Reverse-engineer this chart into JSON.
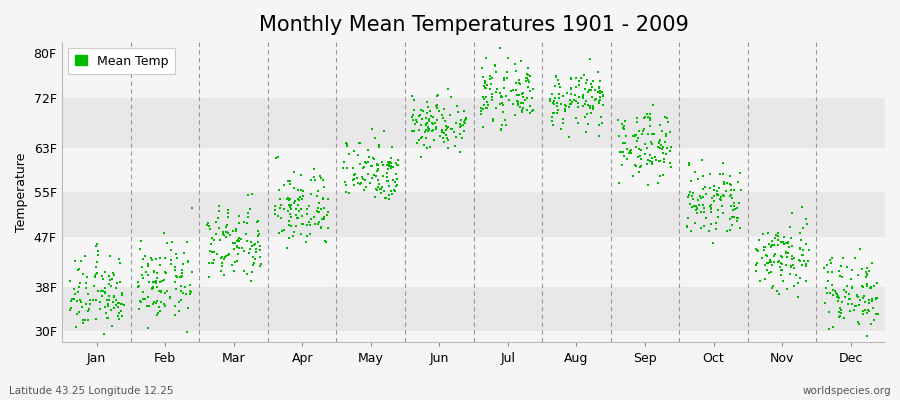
{
  "title": "Monthly Mean Temperatures 1901 - 2009",
  "ylabel": "Temperature",
  "xlabel_labels": [
    "Jan",
    "Feb",
    "Mar",
    "Apr",
    "May",
    "Jun",
    "Jul",
    "Aug",
    "Sep",
    "Oct",
    "Nov",
    "Dec"
  ],
  "ytick_labels": [
    "30F",
    "38F",
    "47F",
    "55F",
    "63F",
    "72F",
    "80F"
  ],
  "ytick_values": [
    30,
    38,
    47,
    55,
    63,
    72,
    80
  ],
  "ylim": [
    28,
    82
  ],
  "dot_color": "#00BB00",
  "dot_size": 3,
  "background_color": "#f5f5f5",
  "plot_bg_color": "#f5f5f5",
  "band_color_dark": "#e8e8e8",
  "band_color_light": "#f5f5f5",
  "dashed_line_color": "#999999",
  "legend_label": "Mean Temp",
  "subtitle_left": "Latitude 43.25 Longitude 12.25",
  "subtitle_right": "worldspecies.org",
  "title_fontsize": 15,
  "label_fontsize": 9,
  "tick_fontsize": 9,
  "monthly_means": [
    36.5,
    38.5,
    45.5,
    52.0,
    59.0,
    67.5,
    72.5,
    71.5,
    63.5,
    53.0,
    43.5,
    37.0
  ],
  "monthly_stds": [
    3.5,
    3.5,
    3.5,
    3.5,
    3.0,
    2.5,
    2.5,
    2.5,
    3.0,
    3.5,
    3.5,
    3.5
  ],
  "n_years": 109
}
